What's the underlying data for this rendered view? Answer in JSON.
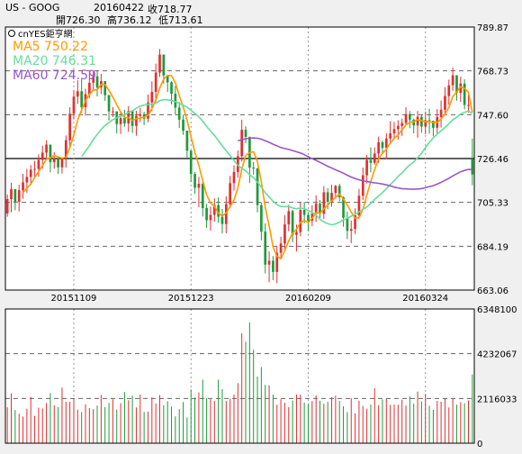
{
  "header": {
    "symbol": "US - GOOG",
    "date": "20160422",
    "close": "收718.77",
    "open": "開726.30",
    "high": "高736.12",
    "low": "低713.61"
  },
  "watermark": "cnYES鉅亨網",
  "legend": {
    "ma5": "MA5 750.22",
    "ma20": "MA20 746.31",
    "ma60": "MA60 724.59"
  },
  "colors": {
    "up": "#e03030",
    "down": "#1f9a3a",
    "ma5": "#ff9900",
    "ma20": "#66dd99",
    "ma60": "#9955cc",
    "background": "#ffffff",
    "frame": "#000000"
  },
  "chart_data": [
    {
      "type": "candlestick",
      "title": "US - GOOG",
      "ylim": [
        663.06,
        789.87
      ],
      "y_ticks": [
        "789.87",
        "768.73",
        "747.60",
        "726.46",
        "705.33",
        "684.19",
        "663.06"
      ],
      "x_ticks": [
        {
          "label": "20151109",
          "index": 17
        },
        {
          "label": "20151223",
          "index": 47
        },
        {
          "label": "20160209",
          "index": 77
        },
        {
          "label": "20160324",
          "index": 107
        }
      ],
      "grid": true,
      "num_candles": 120,
      "ohlc": [
        [
          700.0,
          709.1,
          698.4,
          706.9
        ],
        [
          706.9,
          714.8,
          700.6,
          711.7
        ],
        [
          711.7,
          711.7,
          701.6,
          705.6
        ],
        [
          705.6,
          713.8,
          700.9,
          711.2
        ],
        [
          711.2,
          719.1,
          707.1,
          715.0
        ],
        [
          715.0,
          721.5,
          710.0,
          717.6
        ],
        [
          717.6,
          723.3,
          713.8,
          721.1
        ],
        [
          721.1,
          725.4,
          717.1,
          721.5
        ],
        [
          721.5,
          728.5,
          717.7,
          725.8
        ],
        [
          725.8,
          732.6,
          721.5,
          729.3
        ],
        [
          729.3,
          735.3,
          725.7,
          733.2
        ],
        [
          733.2,
          733.2,
          719.8,
          724.7
        ],
        [
          724.7,
          729.5,
          721.6,
          726.7
        ],
        [
          726.7,
          727.3,
          719.0,
          722.2
        ],
        [
          722.2,
          726.6,
          719.3,
          726.6
        ],
        [
          726.6,
          737.6,
          722.1,
          735.3
        ],
        [
          735.3,
          751.2,
          731.6,
          748.1
        ],
        [
          748.1,
          759.4,
          745.3,
          756.3
        ],
        [
          756.3,
          764.2,
          752.8,
          758.9
        ],
        [
          758.9,
          764.8,
          748.5,
          751.2
        ],
        [
          751.2,
          760.1,
          747.1,
          757.5
        ],
        [
          757.5,
          767.8,
          755.6,
          763.0
        ],
        [
          763.0,
          768.5,
          759.6,
          766.1
        ],
        [
          766.1,
          769.0,
          756.4,
          760.7
        ],
        [
          760.7,
          767.3,
          757.6,
          763.8
        ],
        [
          763.8,
          763.8,
          754.3,
          757.0
        ],
        [
          757.0,
          757.2,
          744.8,
          749.2
        ],
        [
          749.2,
          751.3,
          746.5,
          749.2
        ],
        [
          749.2,
          749.2,
          738.5,
          743.1
        ],
        [
          743.1,
          748.9,
          738.3,
          746.0
        ],
        [
          746.0,
          749.9,
          741.8,
          743.4
        ],
        [
          743.4,
          751.8,
          739.4,
          749.4
        ],
        [
          749.4,
          749.8,
          738.8,
          742.2
        ],
        [
          742.2,
          749.5,
          737.5,
          747.0
        ],
        [
          747.0,
          750.9,
          744.0,
          747.8
        ],
        [
          747.8,
          749.0,
          742.6,
          745.7
        ],
        [
          745.7,
          757.3,
          744.0,
          753.5
        ],
        [
          753.5,
          763.7,
          749.3,
          758.6
        ],
        [
          758.6,
          772.2,
          753.7,
          767.9
        ],
        [
          767.9,
          779.3,
          765.8,
          776.6
        ],
        [
          776.6,
          776.6,
          762.6,
          766.5
        ],
        [
          766.5,
          766.5,
          758.5,
          763.2
        ],
        [
          763.2,
          763.7,
          752.6,
          757.7
        ],
        [
          757.7,
          761.5,
          747.6,
          751.0
        ],
        [
          751.0,
          753.7,
          741.2,
          745.2
        ],
        [
          745.2,
          747.5,
          737.9,
          739.9
        ],
        [
          739.9,
          739.9,
          726.9,
          730.3
        ],
        [
          730.3,
          730.3,
          715.1,
          719.0
        ],
        [
          719.0,
          719.9,
          709.4,
          712.4
        ],
        [
          712.4,
          717.6,
          703.0,
          714.3
        ],
        [
          714.3,
          716.3,
          698.5,
          702.6
        ],
        [
          702.6,
          704.6,
          693.1,
          696.7
        ],
        [
          696.7,
          703.3,
          691.7,
          699.3
        ],
        [
          699.3,
          707.3,
          696.0,
          704.0
        ],
        [
          704.0,
          707.7,
          695.5,
          698.4
        ],
        [
          698.4,
          702.2,
          690.3,
          694.9
        ],
        [
          694.9,
          708.3,
          690.4,
          704.5
        ],
        [
          704.5,
          718.1,
          702.6,
          714.6
        ],
        [
          714.6,
          723.2,
          711.1,
          720.0
        ],
        [
          720.0,
          730.3,
          717.2,
          727.6
        ],
        [
          727.6,
          745.2,
          725.0,
          740.3
        ],
        [
          740.3,
          742.0,
          733.9,
          736.9
        ],
        [
          736.9,
          737.1,
          714.7,
          722.1
        ],
        [
          722.1,
          724.8,
          718.7,
          721.8
        ],
        [
          721.8,
          721.8,
          700.5,
          704.0
        ],
        [
          704.0,
          705.3,
          687.0,
          691.2
        ],
        [
          691.2,
          695.2,
          671.1,
          675.3
        ],
        [
          675.3,
          681.7,
          666.8,
          677.2
        ],
        [
          677.2,
          679.5,
          667.8,
          671.8
        ],
        [
          671.8,
          684.3,
          666.4,
          681.0
        ],
        [
          681.0,
          688.7,
          677.8,
          685.5
        ],
        [
          685.5,
          699.2,
          682.3,
          694.7
        ],
        [
          694.7,
          704.1,
          691.4,
          701.1
        ],
        [
          701.1,
          701.8,
          686.1,
          689.7
        ],
        [
          689.7,
          694.6,
          681.6,
          691.0
        ],
        [
          691.0,
          705.2,
          689.0,
          701.7
        ],
        [
          701.7,
          705.5,
          695.2,
          699.3
        ],
        [
          699.3,
          700.3,
          691.4,
          696.5
        ],
        [
          696.5,
          703.9,
          693.9,
          699.8
        ],
        [
          699.8,
          708.7,
          695.9,
          704.7
        ],
        [
          704.7,
          706.5,
          697.9,
          699.8
        ],
        [
          699.8,
          713.2,
          697.3,
          710.2
        ],
        [
          710.2,
          712.2,
          702.0,
          705.6
        ],
        [
          705.6,
          713.8,
          703.3,
          709.9
        ],
        [
          709.9,
          713.8,
          707.2,
          713.3
        ],
        [
          713.3,
          714.3,
          705.9,
          707.8
        ],
        [
          707.8,
          708.2,
          693.6,
          697.9
        ],
        [
          697.9,
          700.9,
          687.6,
          691.6
        ],
        [
          691.6,
          696.6,
          685.7,
          692.5
        ],
        [
          692.5,
          702.4,
          690.1,
          699.1
        ],
        [
          699.1,
          711.8,
          697.4,
          708.5
        ],
        [
          708.5,
          722.1,
          706.4,
          718.4
        ],
        [
          718.4,
          728.2,
          714.4,
          725.8
        ],
        [
          725.8,
          731.8,
          719.8,
          724.4
        ],
        [
          724.4,
          731.8,
          723.5,
          728.9
        ],
        [
          728.9,
          737.0,
          724.4,
          734.3
        ],
        [
          734.3,
          735.2,
          728.7,
          731.6
        ],
        [
          731.6,
          738.6,
          726.3,
          736.1
        ],
        [
          736.1,
          744.5,
          733.5,
          738.6
        ],
        [
          738.6,
          744.1,
          736.0,
          740.6
        ],
        [
          740.6,
          744.9,
          735.5,
          742.2
        ],
        [
          742.2,
          745.7,
          737.4,
          743.6
        ],
        [
          743.6,
          751.2,
          742.2,
          747.9
        ],
        [
          747.9,
          749.4,
          741.1,
          745.2
        ],
        [
          745.2,
          745.7,
          738.6,
          742.4
        ],
        [
          742.4,
          749.4,
          736.5,
          746.6
        ],
        [
          746.6,
          747.4,
          738.9,
          741.9
        ],
        [
          741.9,
          749.1,
          738.2,
          745.0
        ],
        [
          745.0,
          750.5,
          738.5,
          744.7
        ],
        [
          744.7,
          744.7,
          737.2,
          741.3
        ],
        [
          741.3,
          750.3,
          738.4,
          746.5
        ],
        [
          746.5,
          754.4,
          741.4,
          750.0
        ],
        [
          750.0,
          760.9,
          748.3,
          756.6
        ],
        [
          756.6,
          764.5,
          752.4,
          761.8
        ],
        [
          761.8,
          770.3,
          759.1,
          766.6
        ],
        [
          766.6,
          766.6,
          754.4,
          758.1
        ],
        [
          758.1,
          765.9,
          753.8,
          762.6
        ],
        [
          762.6,
          764.7,
          750.2,
          752.3
        ],
        [
          752.3,
          758.1,
          748.6,
          752.3
        ],
        [
          726.3,
          736.1,
          713.6,
          718.8
        ]
      ],
      "volume": {
        "ylim": [
          0,
          6348100
        ],
        "y_ticks": [
          "6348100",
          "4232067",
          "2116033",
          "0"
        ],
        "values": [
          1700000,
          2360000,
          1570000,
          1390000,
          1260000,
          1630000,
          2190000,
          1290000,
          1680000,
          1640000,
          1900000,
          2370000,
          1790000,
          1710000,
          2630000,
          1960000,
          1960000,
          2110000,
          1590000,
          1470000,
          1840000,
          1660000,
          1610000,
          1780000,
          2280000,
          1710000,
          1900000,
          2080000,
          1590000,
          1890000,
          2420000,
          2030000,
          2250000,
          1690000,
          2300000,
          1480000,
          1490000,
          2170000,
          1880000,
          2270000,
          1800000,
          1980000,
          1730000,
          1270000,
          1610000,
          1950000,
          1210000,
          2540000,
          2160000,
          2400000,
          3000000,
          2130000,
          2080000,
          2000000,
          3000000,
          2560000,
          1990000,
          2100000,
          2300000,
          2840000,
          5200000,
          4800000,
          5720000,
          4420000,
          3150000,
          3600000,
          2760000,
          2730000,
          2300000,
          1820000,
          2080000,
          1910000,
          1700000,
          2020000,
          2300000,
          2300000,
          1920000,
          1850000,
          1990000,
          2260000,
          2010000,
          1870000,
          1950000,
          2170000,
          2250000,
          2000000,
          1750000,
          1470000,
          2130000,
          1410000,
          2010000,
          1760000,
          1630000,
          1830000,
          2600000,
          1800000,
          2070000,
          2100000,
          1810000,
          1830000,
          1820000,
          2050000,
          1780000,
          2210000,
          1870000,
          2440000,
          1970000,
          2330000,
          1770000,
          1580000,
          2000000,
          1960000,
          2120000,
          1690000,
          2140000,
          1820000,
          1940000,
          1890000,
          2020000,
          3250000
        ]
      }
    }
  ]
}
